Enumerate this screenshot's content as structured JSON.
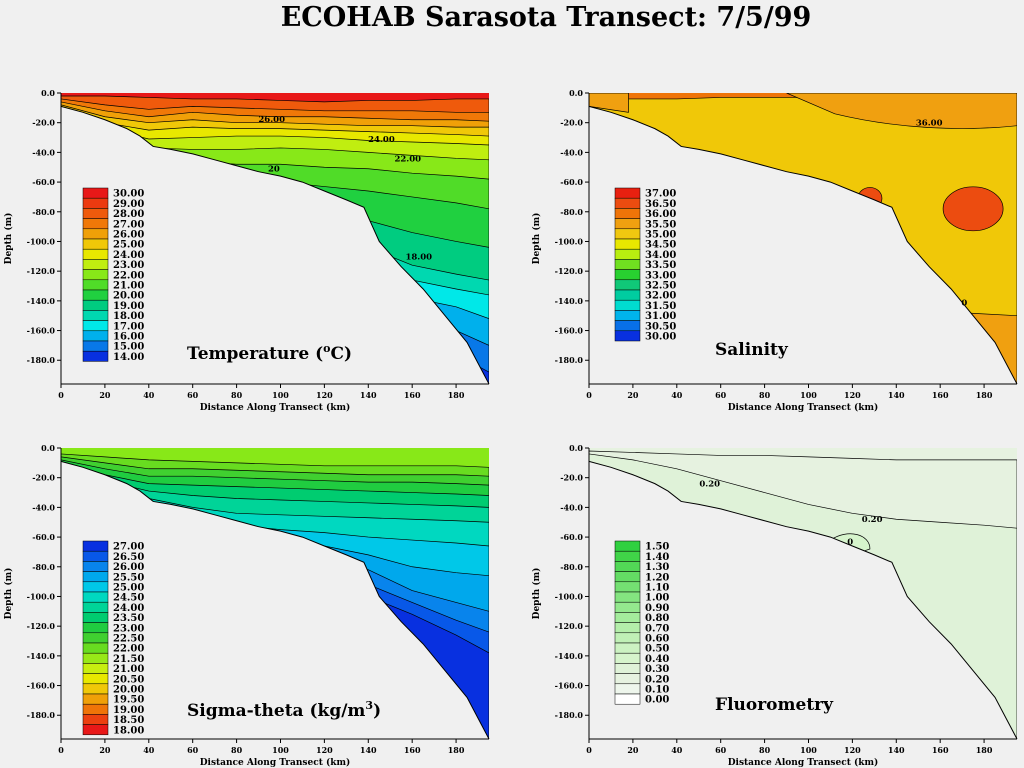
{
  "main_title": "ECOHAB Sarasota Transect: 7/5/99",
  "chart_data": [
    {
      "type": "heatmap",
      "name": "temperature",
      "title_text": "Temperature (",
      "title_sup": "o",
      "title_after": "C)",
      "xlabel": "Distance Along Transect (km)",
      "ylabel": "Depth (m)",
      "xlim": [
        0,
        195
      ],
      "ylim": [
        -196,
        0
      ],
      "xticks": [
        "0",
        "20",
        "40",
        "60",
        "80",
        "100",
        "120",
        "140",
        "160",
        "180"
      ],
      "yticks": [
        "0.0",
        "-20.0",
        "-40.0",
        "-60.0",
        "-80.0",
        "-100.0",
        "-120.0",
        "-140.0",
        "-160.0",
        "-180.0"
      ],
      "legend_levels": [
        "30.00",
        "29.00",
        "28.00",
        "27.00",
        "26.00",
        "25.00",
        "24.00",
        "23.00",
        "22.00",
        "21.00",
        "20.00",
        "19.00",
        "18.00",
        "17.00",
        "16.00",
        "15.00",
        "14.00"
      ],
      "legend_colors": [
        "#e81818",
        "#ec3a10",
        "#ef5a0c",
        "#f07808",
        "#f0a008",
        "#f0c808",
        "#e8e800",
        "#c0ee10",
        "#88e818",
        "#50dc28",
        "#20d040",
        "#00cc80",
        "#00d8b0",
        "#00e8e8",
        "#00b0ec",
        "#0878e8",
        "#0830e0"
      ],
      "contour_labels": [
        {
          "text": "26.00",
          "x": 96,
          "y": -19.5
        },
        {
          "text": "24.00",
          "x": 146,
          "y": -33
        },
        {
          "text": "22.00",
          "x": 158,
          "y": -46
        },
        {
          "text": "18.00",
          "x": 163,
          "y": -112
        },
        {
          "text": "20",
          "x": 97,
          "y": -53
        }
      ]
    },
    {
      "type": "heatmap",
      "name": "salinity",
      "title_text": "Salinity",
      "xlabel": "Distance Along Transect (km)",
      "ylabel": "Depth (m)",
      "xlim": [
        0,
        195
      ],
      "ylim": [
        -196,
        0
      ],
      "xticks": [
        "0",
        "20",
        "40",
        "60",
        "80",
        "100",
        "120",
        "140",
        "160",
        "180"
      ],
      "yticks": [
        "0.0",
        "-20.0",
        "-40.0",
        "-60.0",
        "-80.0",
        "-100.0",
        "-120.0",
        "-140.0",
        "-160.0",
        "-180.0"
      ],
      "legend_levels": [
        "37.00",
        "36.50",
        "36.00",
        "35.50",
        "35.00",
        "34.50",
        "34.00",
        "33.50",
        "33.00",
        "32.50",
        "32.00",
        "31.50",
        "31.00",
        "30.50",
        "30.00"
      ],
      "legend_colors": [
        "#e82010",
        "#ec4c10",
        "#ef7408",
        "#f0a010",
        "#f0c810",
        "#e8e800",
        "#b8ee10",
        "#70e020",
        "#28d030",
        "#10c878",
        "#00cca0",
        "#00dcd0",
        "#00b4ec",
        "#0870e8",
        "#0830e0"
      ],
      "contour_labels": [
        {
          "text": "36.00",
          "x": 155,
          "y": -22
        },
        {
          "text": "0",
          "x": 171,
          "y": -143
        }
      ]
    },
    {
      "type": "heatmap",
      "name": "sigma_theta",
      "title_text": "Sigma-theta  (kg/m",
      "title_sup": "3",
      "title_after": ")",
      "xlabel": "Distance Along Transect (km)",
      "ylabel": "Depth (m)",
      "xlim": [
        0,
        195
      ],
      "ylim": [
        -196,
        0
      ],
      "xticks": [
        "0",
        "20",
        "40",
        "60",
        "80",
        "100",
        "120",
        "140",
        "160",
        "180"
      ],
      "yticks": [
        "0.0",
        "-20.0",
        "-40.0",
        "-60.0",
        "-80.0",
        "-100.0",
        "-120.0",
        "-140.0",
        "-160.0",
        "-180.0"
      ],
      "legend_levels": [
        "27.00",
        "26.50",
        "26.00",
        "25.50",
        "25.00",
        "24.50",
        "24.00",
        "23.50",
        "23.00",
        "22.50",
        "22.00",
        "21.50",
        "21.00",
        "20.50",
        "20.00",
        "19.50",
        "19.00",
        "18.50",
        "18.00"
      ],
      "legend_colors": [
        "#0830e0",
        "#0858e8",
        "#0884ec",
        "#00a8ec",
        "#00c8e8",
        "#00d8c0",
        "#00d498",
        "#00cc70",
        "#20cc40",
        "#40d030",
        "#68dc20",
        "#98e818",
        "#c8ee10",
        "#e8e800",
        "#f0c808",
        "#f0a008",
        "#ef7408",
        "#ec4010",
        "#e81818"
      ],
      "contour_labels": []
    },
    {
      "type": "heatmap",
      "name": "fluorometry",
      "title_text": "Fluorometry",
      "xlabel": "Distance Along Transect (km)",
      "ylabel": "Depth (m)",
      "xlim": [
        0,
        195
      ],
      "ylim": [
        -196,
        0
      ],
      "xticks": [
        "0",
        "20",
        "40",
        "60",
        "80",
        "100",
        "120",
        "140",
        "160",
        "180"
      ],
      "yticks": [
        "0.0",
        "-20.0",
        "-40.0",
        "-60.0",
        "-80.0",
        "-100.0",
        "-120.0",
        "-140.0",
        "-160.0",
        "-180.0"
      ],
      "legend_levels": [
        "1.50",
        "1.40",
        "1.30",
        "1.20",
        "1.10",
        "1.00",
        "0.90",
        "0.80",
        "0.70",
        "0.60",
        "0.50",
        "0.40",
        "0.30",
        "0.20",
        "0.10",
        "0.00"
      ],
      "legend_colors": [
        "#30d040",
        "#40d448",
        "#52d856",
        "#64dc64",
        "#74e072",
        "#84e480",
        "#94e88e",
        "#a4ec9c",
        "#b4eeaa",
        "#c0f0b6",
        "#ccf2c2",
        "#d6f4cc",
        "#dff2d8",
        "#e6f2e0",
        "#eef6ec",
        "#ffffff"
      ],
      "contour_labels": [
        {
          "text": "0.20",
          "x": 55,
          "y": -26
        },
        {
          "text": "0.20",
          "x": 129,
          "y": -50
        },
        {
          "text": "0",
          "x": 119,
          "y": -65
        }
      ]
    }
  ]
}
